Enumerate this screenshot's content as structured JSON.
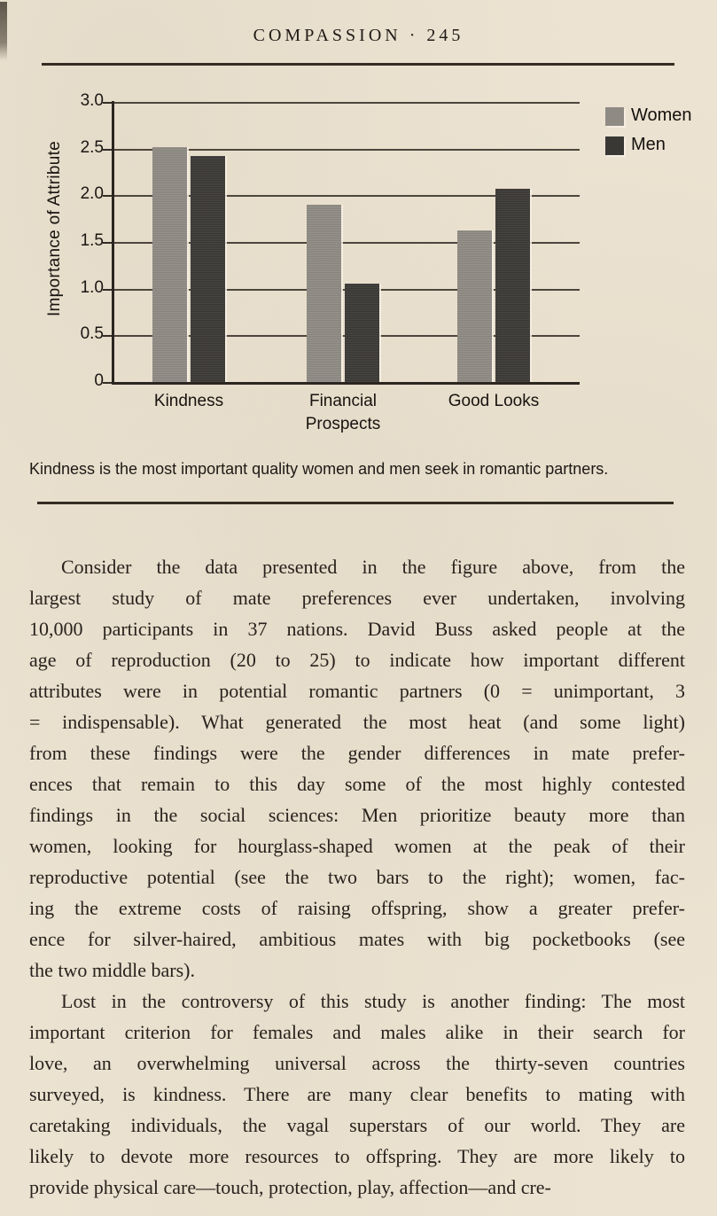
{
  "page": {
    "running_head": "COMPASSION · 245",
    "figure": {
      "caption": "Kindness is the most important quality women and men seek in romantic partners."
    },
    "body_paragraphs": [
      {
        "lines": [
          "Consider the data presented in the figure above, from the",
          "largest study of mate preferences ever undertaken, involving",
          "10,000 participants in 37 nations. David Buss asked people at the",
          "age of reproduction (20 to 25) to indicate how important different",
          "attributes were in potential romantic partners (0 = unimportant, 3",
          "= indispensable). What generated the most heat (and some light)",
          "from these findings were the gender differences in mate prefer-",
          "ences that remain to this day some of the most highly contested",
          "findings in the social sciences: Men prioritize beauty more than",
          "women, looking for hourglass-shaped women at the peak of their",
          "reproductive potential (see the two bars to the right); women, fac-",
          "ing the extreme costs of raising offspring, show a greater prefer-",
          "ence for silver-haired, ambitious mates with big pocketbooks (see",
          "the two middle bars)."
        ]
      },
      {
        "lines": [
          "Lost in the controversy of this study is another finding: The most",
          "important criterion for females and males alike in their search for",
          "love, an overwhelming universal across the thirty-seven countries",
          "surveyed, is kindness. There are many clear benefits to mating with",
          "caretaking individuals, the vagal superstars of our world. They are",
          "likely to devote more resources to offspring. They are more likely to",
          "provide physical care—touch, protection, play, affection—and cre-"
        ]
      }
    ]
  },
  "chart_data": {
    "type": "bar",
    "title": "",
    "categories": [
      "Kindness",
      "Financial Prospects",
      "Good Looks"
    ],
    "series": [
      {
        "name": "Women",
        "color": "#8f8b84",
        "values": [
          2.52,
          1.9,
          1.62
        ]
      },
      {
        "name": "Men",
        "color": "#3a3835",
        "values": [
          2.42,
          1.05,
          2.07
        ]
      }
    ],
    "xlabel": "",
    "ylabel": "Importance of Attribute",
    "ylim": [
      0,
      3.0
    ],
    "ytick_labels": [
      "3.0",
      "2.5",
      "2.0",
      "1.5",
      "1.0",
      "0.5",
      "0"
    ],
    "grid": true,
    "legend_position": "top-right",
    "paper_color": "#ece3d2",
    "ink_color": "#29221d"
  }
}
